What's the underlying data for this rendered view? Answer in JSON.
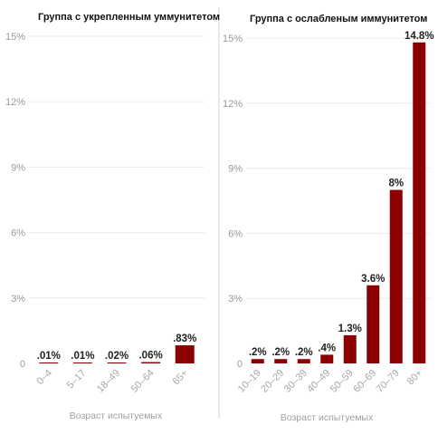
{
  "chart_data": [
    {
      "type": "bar",
      "title": "Группа с укрепленным уммунитетом",
      "xlabel": "Возраст испытуемых",
      "ylabel": "",
      "ylim": [
        0,
        15
      ],
      "yticks": [
        "0",
        "3%",
        "6%",
        "9%",
        "12%",
        "15%"
      ],
      "ytick_values": [
        0,
        3,
        6,
        9,
        12,
        15
      ],
      "categories": [
        "0–4",
        "5–17",
        "18–49",
        "50–64",
        "65+"
      ],
      "values": [
        0.01,
        0.01,
        0.02,
        0.06,
        0.83
      ],
      "data_labels": [
        ".01%",
        ".01%",
        ".02%",
        ".06%",
        ".83%"
      ],
      "grid": true,
      "bar_color": "#8b0000"
    },
    {
      "type": "bar",
      "title": "Группа с ослабленым иммунитетом",
      "xlabel": "Возраст испытуемых",
      "ylabel": "",
      "ylim": [
        0,
        15
      ],
      "yticks": [
        "0",
        "3%",
        "6%",
        "9%",
        "12%",
        "15%"
      ],
      "ytick_values": [
        0,
        3,
        6,
        9,
        12,
        15
      ],
      "categories": [
        "10–19",
        "20–29",
        "30–39",
        "40–49",
        "50–59",
        "60–69",
        "70–79",
        "80+"
      ],
      "values": [
        0.2,
        0.2,
        0.2,
        0.4,
        1.3,
        3.6,
        8,
        14.8
      ],
      "data_labels": [
        ".2%",
        ".2%",
        ".2%",
        ".4%",
        "1.3%",
        "3.6%",
        "8%",
        "14.8%"
      ],
      "grid": true,
      "bar_color": "#8b0000"
    }
  ]
}
